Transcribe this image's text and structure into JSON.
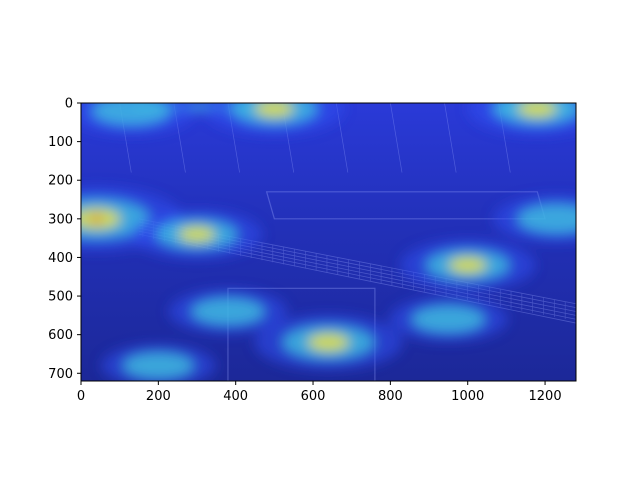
{
  "chart_data": {
    "type": "heatmap",
    "title": "",
    "xlabel": "",
    "ylabel": "",
    "x_ticks": [
      0,
      200,
      400,
      600,
      800,
      1000,
      1200
    ],
    "y_ticks": [
      0,
      100,
      200,
      300,
      400,
      500,
      600,
      700
    ],
    "xlim": [
      0,
      1280
    ],
    "ylim": [
      720,
      0
    ],
    "y_axis_inverted": true,
    "grid": false,
    "colormap": "jet",
    "overlay_base": "photo of a construction site with railings and signage",
    "hotspots": [
      {
        "x": 40,
        "y": 300,
        "intensity": 1.0
      },
      {
        "x": 640,
        "y": 620,
        "intensity": 0.7
      },
      {
        "x": 500,
        "y": 15,
        "intensity": 0.6
      },
      {
        "x": 1180,
        "y": 15,
        "intensity": 0.6
      },
      {
        "x": 1000,
        "y": 420,
        "intensity": 0.55
      },
      {
        "x": 300,
        "y": 340,
        "intensity": 0.5
      },
      {
        "x": 1230,
        "y": 300,
        "intensity": 0.45
      },
      {
        "x": 130,
        "y": 20,
        "intensity": 0.45
      },
      {
        "x": 380,
        "y": 540,
        "intensity": 0.35
      },
      {
        "x": 950,
        "y": 560,
        "intensity": 0.35
      },
      {
        "x": 200,
        "y": 680,
        "intensity": 0.3
      }
    ],
    "colors": {
      "base": "#2430c8",
      "cool": "#3050f0",
      "mid": "#40c8e0",
      "warm": "#e8e040",
      "hot": "#e02010"
    }
  }
}
